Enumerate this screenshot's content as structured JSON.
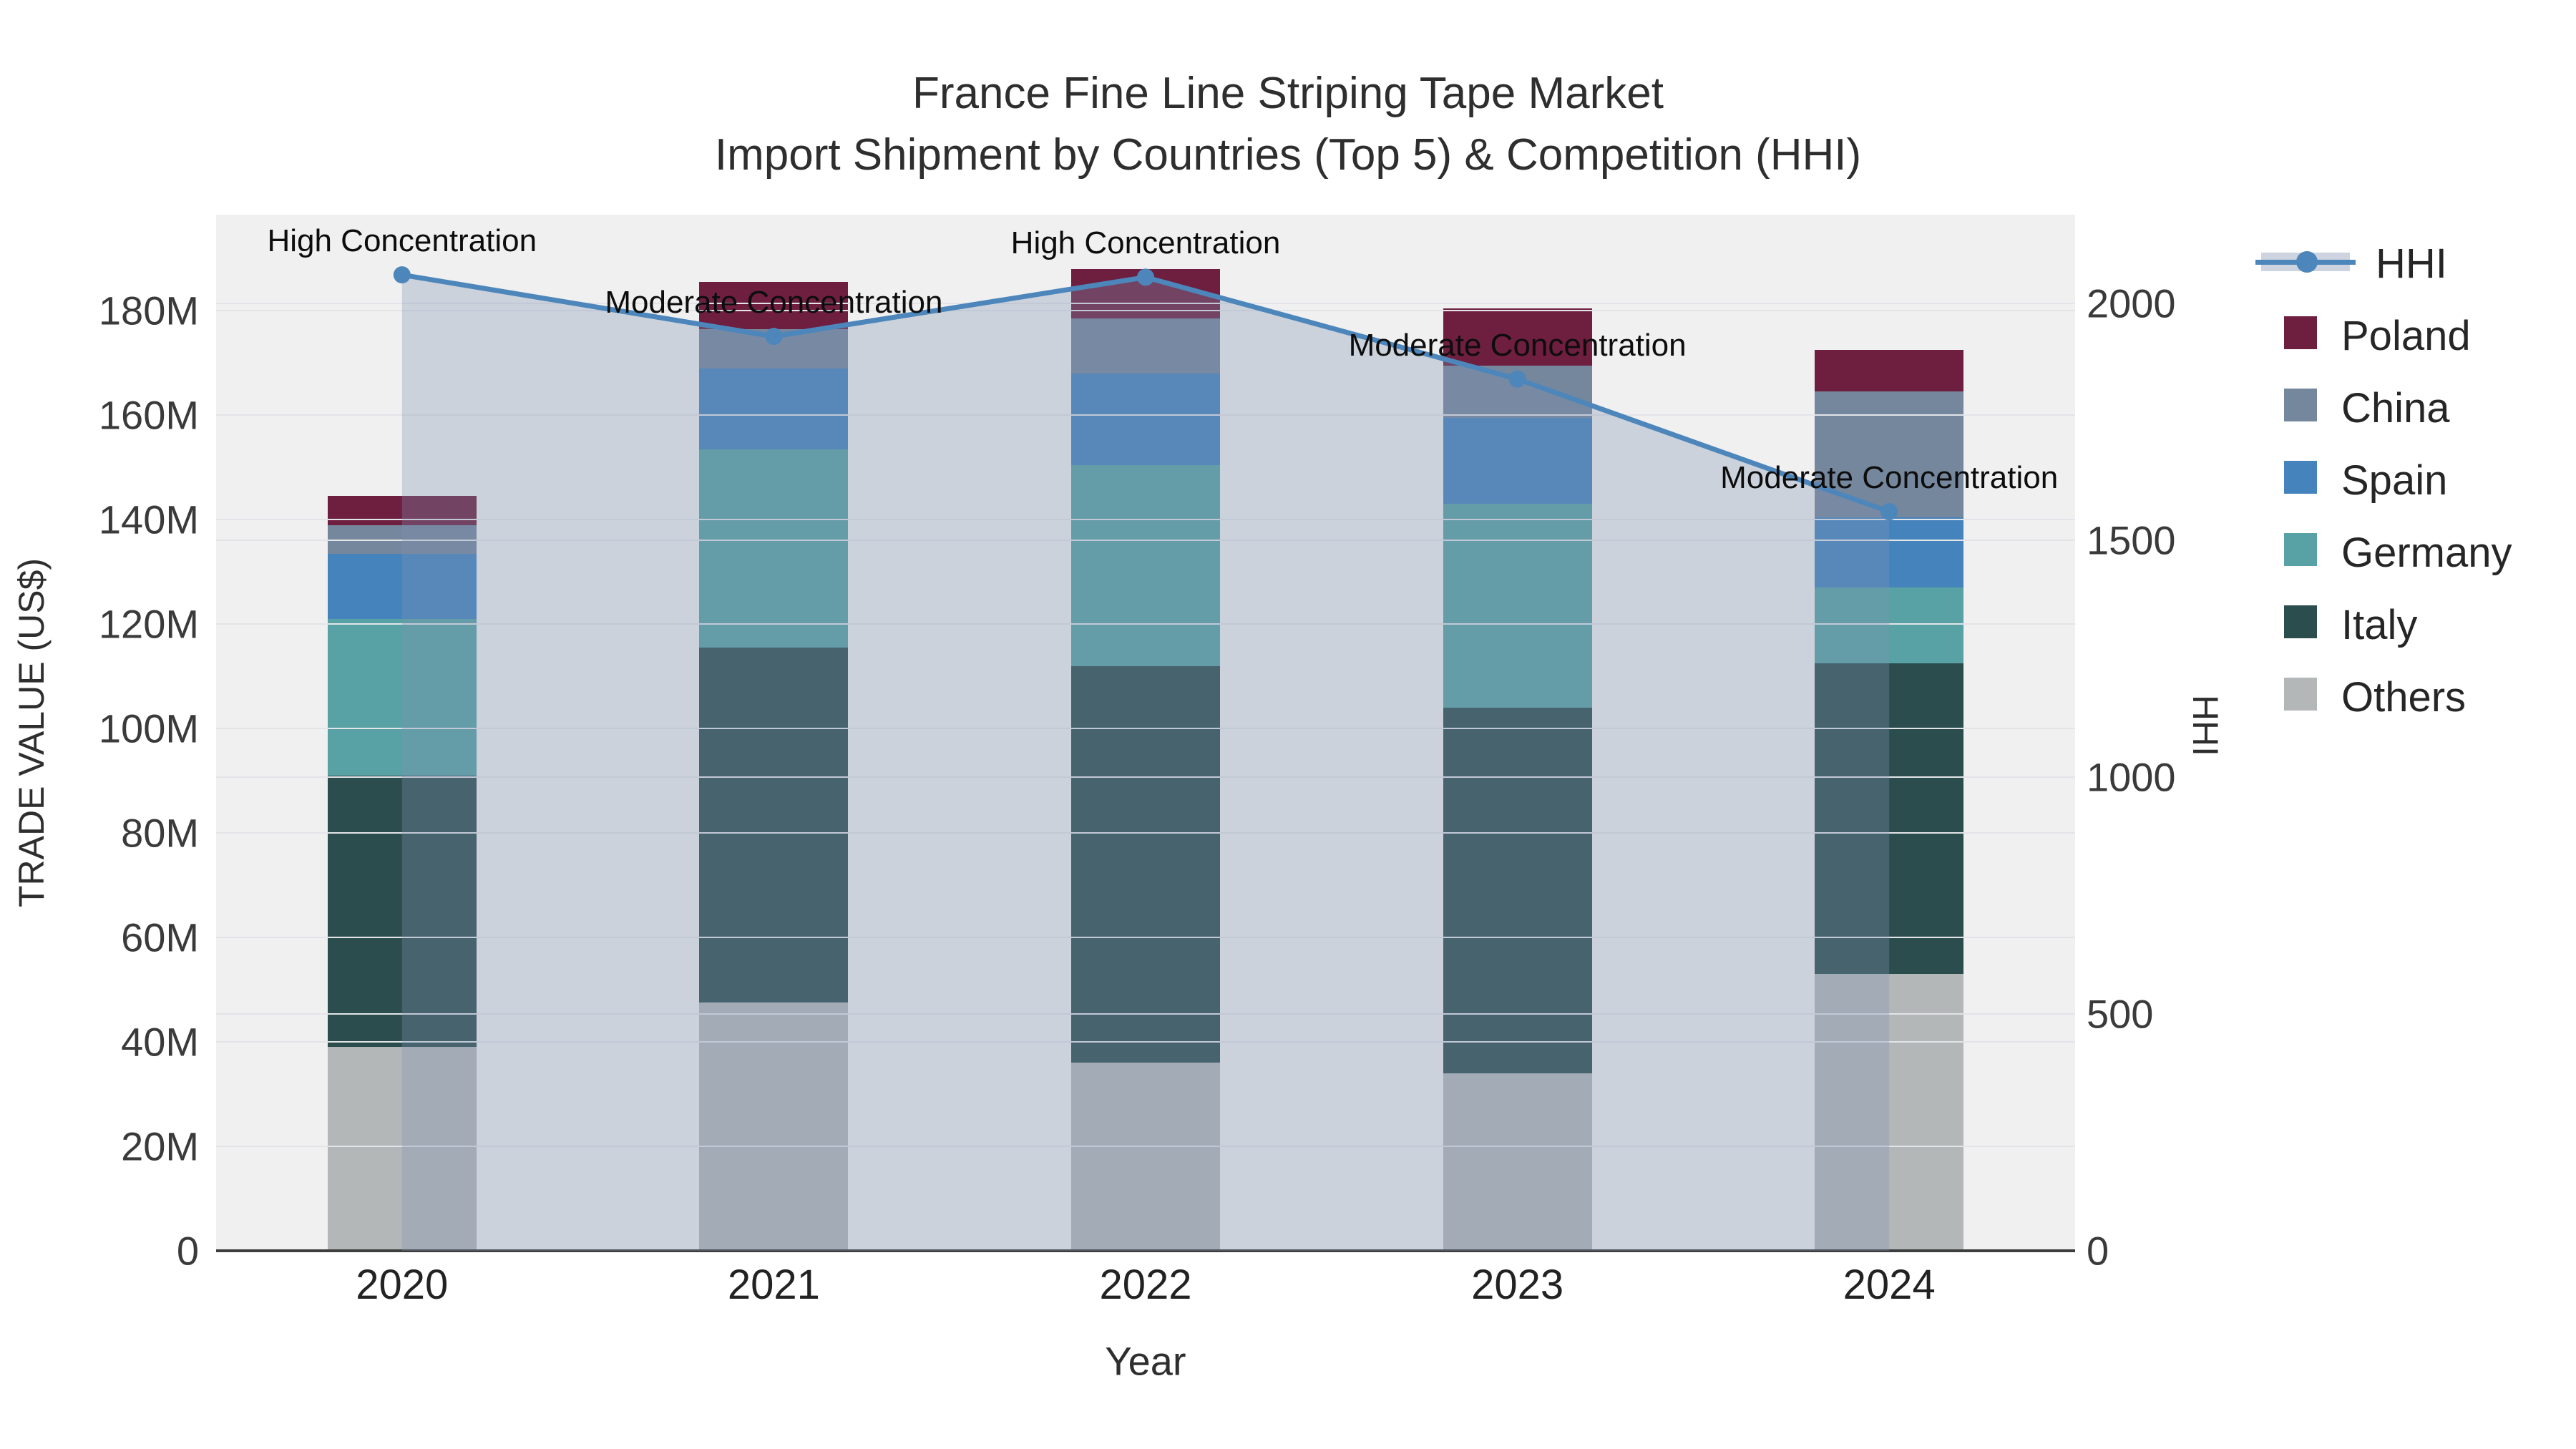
{
  "title": {
    "line1": "France Fine Line Striping Tape Market",
    "line2": "Import Shipment by Countries (Top 5) & Competition (HHI)"
  },
  "chart_data": {
    "type": "bar",
    "subtype": "stacked-bars-with-secondary-axis-line-and-area-fill",
    "categories": [
      "2020",
      "2021",
      "2022",
      "2023",
      "2024"
    ],
    "value_unit": "million US$",
    "series": [
      {
        "name": "Others",
        "color": "#b4b7b8",
        "values": [
          39,
          47.5,
          36,
          34,
          53
        ]
      },
      {
        "name": "Italy",
        "color": "#2c4d4e",
        "values": [
          52,
          68,
          76,
          70,
          59.5
        ]
      },
      {
        "name": "Germany",
        "color": "#58a1a4",
        "values": [
          30,
          38,
          38.5,
          39,
          14.5
        ]
      },
      {
        "name": "Spain",
        "color": "#4583bd",
        "values": [
          12.5,
          15.5,
          17.5,
          16.5,
          13.5
        ]
      },
      {
        "name": "China",
        "color": "#75879c",
        "values": [
          5.5,
          7.5,
          10.5,
          10,
          24
        ]
      },
      {
        "name": "Poland",
        "color": "#6e1e3f",
        "values": [
          5.5,
          9,
          9.5,
          11,
          8
        ]
      }
    ],
    "stack_totals": [
      144.5,
      185.5,
      188,
      180.5,
      172.5
    ],
    "line": {
      "name": "HHI",
      "color": "#4d86bb",
      "axis": "right",
      "values": [
        2060,
        1930,
        2055,
        1840,
        1560
      ],
      "area_fill": "rgba(128,147,178,0.32)"
    },
    "annotations": [
      {
        "category": "2020",
        "text": "High Concentration"
      },
      {
        "category": "2021",
        "text": "Moderate Concentration"
      },
      {
        "category": "2022",
        "text": "High Concentration"
      },
      {
        "category": "2023",
        "text": "Moderate Concentration"
      },
      {
        "category": "2024",
        "text": "Moderate Concentration"
      }
    ],
    "left_axis": {
      "title": "TRADE VALUE (US$)",
      "tick_labels": [
        "0",
        "20M",
        "40M",
        "60M",
        "80M",
        "100M",
        "120M",
        "140M",
        "160M",
        "180M"
      ],
      "tick_values": [
        0,
        20,
        40,
        60,
        80,
        100,
        120,
        140,
        160,
        180
      ],
      "range": [
        0,
        198.4
      ]
    },
    "right_axis": {
      "title": "HHI",
      "tick_labels": [
        "0",
        "500",
        "1000",
        "1500",
        "2000"
      ],
      "tick_values": [
        0,
        500,
        1000,
        1500,
        2000
      ],
      "range": [
        0,
        2187
      ]
    },
    "x_axis": {
      "title": "Year"
    },
    "legend_order": [
      "HHI",
      "Poland",
      "China",
      "Spain",
      "Germany",
      "Italy",
      "Others"
    ],
    "plot_bg": "#f0f0f1",
    "grid_color": "#e2e4e8",
    "axis_line_color": "#3d3d3d"
  }
}
